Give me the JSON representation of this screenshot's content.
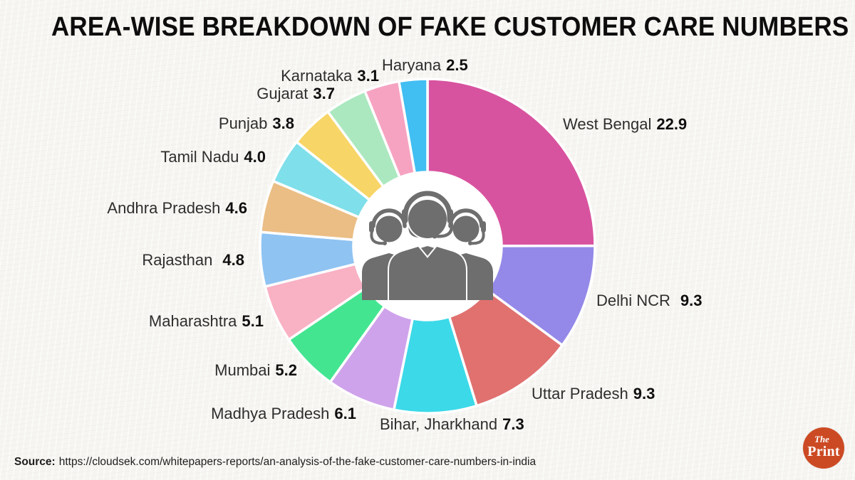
{
  "page": {
    "title": "AREA-WISE BREAKDOWN OF FAKE CUSTOMER CARE NUMBERS"
  },
  "chart_data": {
    "type": "pie",
    "donut": true,
    "title": "AREA-WISE BREAKDOWN OF FAKE CUSTOMER CARE NUMBERS",
    "categories": [
      "West Bengal",
      "Delhi NCR",
      "Uttar Pradesh",
      "Bihar, Jharkhand",
      "Madhya Pradesh",
      "Mumbai",
      "Maharashtra",
      "Rajasthan",
      "Andhra Pradesh",
      "Tamil Nadu",
      "Punjab",
      "Gujarat",
      "Karnataka",
      "Haryana"
    ],
    "values": [
      22.9,
      9.3,
      9.3,
      7.3,
      6.1,
      5.2,
      5.1,
      4.8,
      4.6,
      4.0,
      3.8,
      3.7,
      3.1,
      2.5
    ],
    "value_labels": [
      "22.9",
      "9.3",
      "9.3",
      "7.3",
      "6.1",
      "5.2",
      "5.1",
      "4.8",
      "4.6",
      "4.0",
      "3.8",
      "3.7",
      "3.1",
      "2.5"
    ],
    "colors": [
      "#d8539f",
      "#9489e8",
      "#e0716f",
      "#3cd9e8",
      "#cfa3eb",
      "#44e591",
      "#f9b1c4",
      "#8fc3f2",
      "#ebbe85",
      "#7fdfea",
      "#f7d566",
      "#abe8bf",
      "#f6a3c1",
      "#41bef2"
    ],
    "start_position": "top",
    "direction": "clockwise",
    "labels": "outside",
    "legend": "none",
    "center_icon": "customer-care-agents-icon"
  },
  "theme": {
    "background": "#f6f5f1",
    "hole": "#ffffff",
    "icon": "#6e6e6e",
    "logo": "#cc4a23",
    "title_color": "#0d0d0d"
  },
  "source": {
    "label": "Source:",
    "url": "https://cloudsek.com/whitepapers-reports/an-analysis-of-the-fake-customer-care-numbers-in-india"
  },
  "logo": {
    "line1": "The",
    "line2": "Print"
  }
}
